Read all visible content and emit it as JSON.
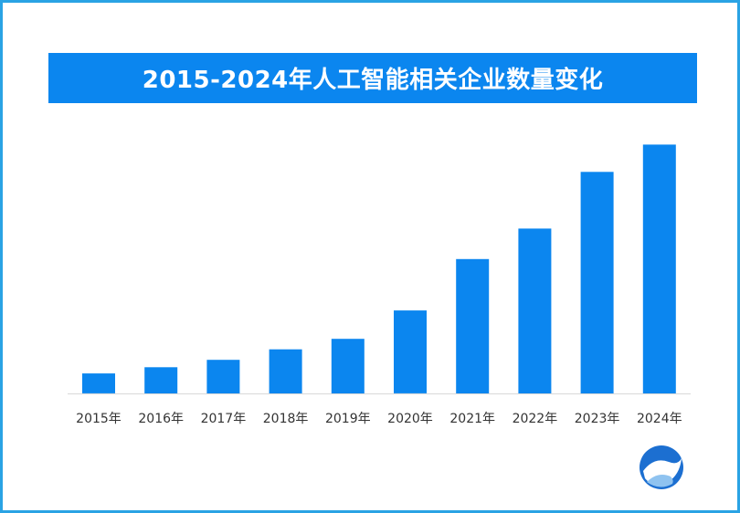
{
  "title": "2015-2024年人工智能相关企业数量变化",
  "colors": {
    "frame": "#2aa3e4",
    "title_bg": "#0b86ef",
    "bar": "#0b86ef",
    "axis": "#d9d9d9",
    "tick_text": "#333333",
    "logo_primary": "#1c6fd1"
  },
  "logo": {
    "icon": "globe-logo-icon"
  },
  "chart_data": {
    "type": "bar",
    "title": "2015-2024年人工智能相关企业数量变化",
    "xlabel": "",
    "ylabel": "",
    "ylim": [
      0,
      240
    ],
    "axis_visible": false,
    "grid": false,
    "legend": "none",
    "categories": [
      "2015年",
      "2016年",
      "2017年",
      "2018年",
      "2019年",
      "2020年",
      "2021年",
      "2022年",
      "2023年",
      "2024年"
    ],
    "values": [
      19,
      25,
      32,
      42,
      52,
      79,
      128,
      157,
      211,
      237
    ]
  }
}
